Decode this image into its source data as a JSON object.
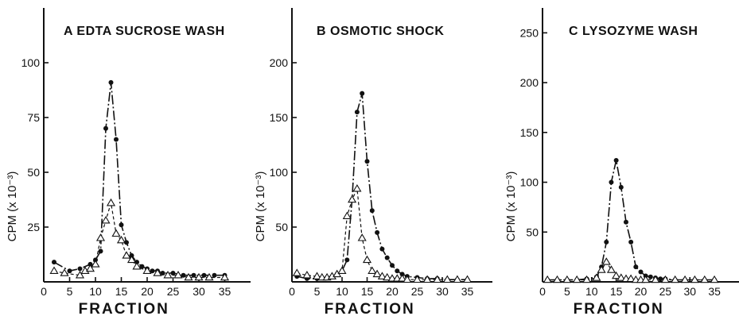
{
  "chart_data": [
    {
      "type": "line",
      "title": "A  EDTA SUCROSE WASH",
      "xlabel": "FRACTION",
      "ylabel": "CPM (x 10⁻³)",
      "xlim": [
        0,
        40
      ],
      "ylim": [
        0,
        125
      ],
      "xticks": [
        0,
        5,
        10,
        15,
        20,
        25,
        30,
        35
      ],
      "yticks": [
        25,
        50,
        75,
        100
      ],
      "series": [
        {
          "marker": "filled-circle",
          "x": [
            2,
            5,
            7,
            9,
            10,
            11,
            12,
            13,
            14,
            15,
            16,
            17,
            18,
            19,
            20,
            21,
            22,
            23,
            25,
            27,
            29,
            31,
            33,
            35
          ],
          "y": [
            9,
            5,
            6,
            8,
            10,
            14,
            70,
            91,
            65,
            26,
            18,
            12,
            9,
            7,
            6,
            5,
            5,
            4,
            4,
            3,
            3,
            3,
            3,
            3
          ]
        },
        {
          "marker": "open-triangle",
          "x": [
            2,
            4,
            7,
            8,
            9,
            10,
            11,
            12,
            13,
            14,
            15,
            16,
            17,
            18,
            20,
            22,
            24,
            26,
            28,
            30,
            32,
            35
          ],
          "y": [
            5,
            4,
            3,
            5,
            6,
            8,
            20,
            28,
            36,
            22,
            19,
            12,
            10,
            7,
            5,
            4,
            3,
            3,
            2,
            2,
            2,
            2
          ]
        }
      ]
    },
    {
      "type": "line",
      "title": "B  OSMOTIC SHOCK",
      "xlabel": "FRACTION",
      "ylabel": "CPM (x 10⁻³)",
      "xlim": [
        0,
        40
      ],
      "ylim": [
        0,
        250
      ],
      "xticks": [
        0,
        5,
        10,
        15,
        20,
        25,
        30,
        35
      ],
      "yticks": [
        50,
        100,
        150,
        200
      ],
      "series": [
        {
          "marker": "filled-circle",
          "x": [
            1,
            3,
            5,
            7,
            8,
            9,
            10,
            11,
            12,
            13,
            14,
            15,
            16,
            17,
            18,
            19,
            20,
            21,
            22,
            23,
            25,
            27,
            29,
            31,
            33,
            35
          ],
          "y": [
            5,
            3,
            3,
            4,
            5,
            7,
            10,
            20,
            75,
            155,
            172,
            110,
            65,
            45,
            30,
            22,
            15,
            10,
            7,
            5,
            4,
            3,
            3,
            2,
            2,
            2
          ]
        },
        {
          "marker": "open-triangle",
          "x": [
            1,
            3,
            5,
            6,
            7,
            8,
            9,
            10,
            11,
            12,
            13,
            14,
            15,
            16,
            17,
            18,
            19,
            20,
            21,
            22,
            23,
            25,
            27,
            29,
            31,
            33,
            35
          ],
          "y": [
            8,
            6,
            5,
            4,
            4,
            5,
            7,
            10,
            60,
            75,
            85,
            40,
            20,
            10,
            7,
            5,
            4,
            3,
            3,
            3,
            2,
            2,
            2,
            2,
            2,
            2,
            2
          ]
        }
      ]
    },
    {
      "type": "line",
      "title": "C  LYSOZYME WASH",
      "xlabel": "FRACTION",
      "ylabel": "CPM (x 10⁻³)",
      "xlim": [
        0,
        40
      ],
      "ylim": [
        0,
        275
      ],
      "xticks": [
        0,
        5,
        10,
        15,
        20,
        25,
        30,
        35
      ],
      "yticks": [
        50,
        100,
        150,
        200,
        250
      ],
      "series": [
        {
          "marker": "filled-circle",
          "x": [
            1,
            3,
            5,
            7,
            9,
            11,
            12,
            13,
            14,
            15,
            16,
            17,
            18,
            19,
            20,
            21,
            22,
            23,
            24,
            25,
            27,
            29,
            31,
            33,
            35
          ],
          "y": [
            2,
            2,
            2,
            2,
            3,
            5,
            15,
            40,
            100,
            122,
            95,
            60,
            40,
            15,
            10,
            6,
            5,
            4,
            3,
            3,
            2,
            2,
            2,
            2,
            2
          ]
        },
        {
          "marker": "open-triangle",
          "x": [
            1,
            3,
            5,
            7,
            9,
            11,
            12,
            13,
            14,
            15,
            16,
            17,
            18,
            19,
            20,
            21,
            23,
            25,
            27,
            29,
            31,
            33,
            35
          ],
          "y": [
            2,
            2,
            2,
            2,
            2,
            4,
            12,
            20,
            12,
            6,
            4,
            3,
            3,
            2,
            2,
            2,
            2,
            2,
            2,
            2,
            2,
            2,
            2
          ]
        }
      ]
    }
  ]
}
